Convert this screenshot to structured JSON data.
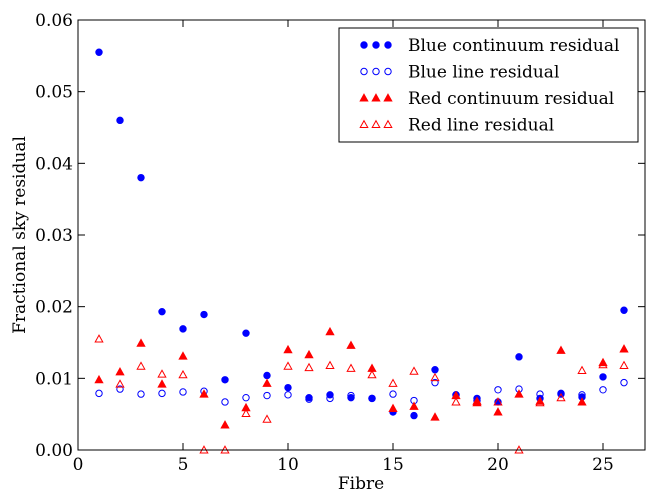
{
  "chart_data": {
    "type": "scatter",
    "xlabel": "Fibre",
    "ylabel": "Fractional sky residual",
    "xlim": [
      0,
      27
    ],
    "ylim": [
      0,
      0.06
    ],
    "x_ticks": [
      0,
      5,
      10,
      15,
      20,
      25
    ],
    "y_ticks": [
      0.0,
      0.01,
      0.02,
      0.03,
      0.04,
      0.05,
      0.06
    ],
    "x_tick_labels": [
      "0",
      "5",
      "10",
      "15",
      "20",
      "25"
    ],
    "y_tick_labels": [
      "0.00",
      "0.01",
      "0.02",
      "0.03",
      "0.04",
      "0.05",
      "0.06"
    ],
    "grid": false,
    "legend_position": "top-right",
    "series": [
      {
        "name": "Blue continuum residual",
        "color": "#0000ff",
        "marker": "circle",
        "filled": true,
        "x": [
          1,
          2,
          3,
          4,
          5,
          6,
          7,
          8,
          9,
          10,
          11,
          12,
          13,
          14,
          15,
          16,
          17,
          18,
          19,
          20,
          21,
          22,
          23,
          24,
          25,
          26
        ],
        "y": [
          0.0555,
          0.046,
          0.038,
          0.0193,
          0.0169,
          0.0189,
          0.0098,
          0.0163,
          0.0104,
          0.0087,
          0.0073,
          0.0077,
          0.0073,
          0.0072,
          0.0053,
          0.0048,
          0.0112,
          0.0077,
          0.0072,
          0.0067,
          0.013,
          0.0072,
          0.0079,
          0.0074,
          0.0102,
          0.0195
        ]
      },
      {
        "name": "Blue line residual",
        "color": "#0000ff",
        "marker": "circle",
        "filled": false,
        "x": [
          1,
          2,
          3,
          4,
          5,
          6,
          7,
          8,
          9,
          10,
          11,
          12,
          13,
          14,
          15,
          16,
          17,
          18,
          19,
          20,
          21,
          22,
          23,
          24,
          25,
          26
        ],
        "y": [
          0.0079,
          0.0085,
          0.0078,
          0.0079,
          0.0081,
          0.0082,
          0.0067,
          0.0073,
          0.0076,
          0.0077,
          0.0071,
          0.0072,
          0.0076,
          0.0072,
          0.0078,
          0.0069,
          0.0094,
          0.0077,
          0.0069,
          0.0084,
          0.0085,
          0.0078,
          0.0078,
          0.0077,
          0.0084,
          0.0094
        ]
      },
      {
        "name": "Red continuum residual",
        "color": "#ff0000",
        "marker": "triangle",
        "filled": true,
        "x": [
          1,
          2,
          3,
          4,
          5,
          6,
          7,
          8,
          9,
          10,
          11,
          12,
          13,
          14,
          15,
          16,
          17,
          18,
          19,
          20,
          21,
          22,
          23,
          24,
          25,
          26
        ],
        "y": [
          0.0098,
          0.0109,
          0.0149,
          0.0092,
          0.0131,
          0.0078,
          0.0035,
          0.0059,
          0.0093,
          0.014,
          0.0133,
          0.0165,
          0.0146,
          0.0114,
          0.0058,
          0.0061,
          0.0046,
          0.0076,
          0.0066,
          0.0053,
          0.0078,
          0.0068,
          0.0139,
          0.0067,
          0.0122,
          0.0141
        ]
      },
      {
        "name": "Red line residual",
        "color": "#ff0000",
        "marker": "triangle",
        "filled": false,
        "x": [
          1,
          2,
          3,
          4,
          5,
          6,
          7,
          8,
          9,
          10,
          11,
          12,
          13,
          14,
          15,
          16,
          17,
          18,
          19,
          20,
          21,
          22,
          23,
          24,
          25,
          26
        ],
        "y": [
          0.0155,
          0.0092,
          0.0117,
          0.0106,
          0.0105,
          0.0,
          0.0,
          0.0051,
          0.0043,
          0.0117,
          0.0115,
          0.0118,
          0.0114,
          0.0105,
          0.0093,
          0.011,
          0.0101,
          0.0067,
          0.0068,
          0.0067,
          0.0,
          0.0066,
          0.0073,
          0.0111,
          0.0119,
          0.0118
        ]
      }
    ]
  }
}
